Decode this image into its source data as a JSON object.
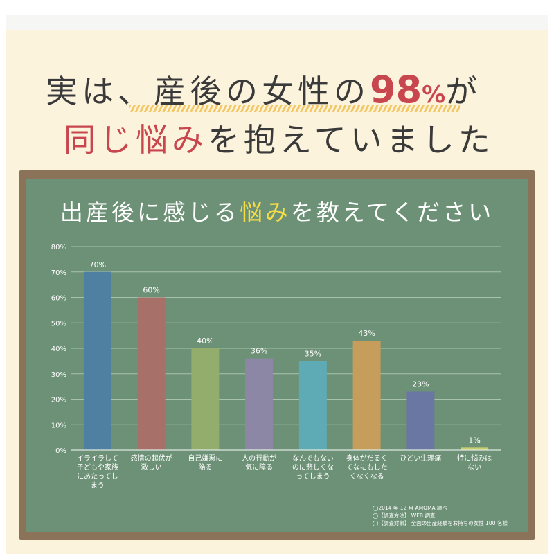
{
  "headline": {
    "line1_a": "実は、産後の女性の",
    "line1_num": "98",
    "line1_pct": "%",
    "line1_b": "が",
    "line2_red": "同じ悩み",
    "line2_rest": "を抱えていました"
  },
  "chart_title": {
    "before": "出産後に感じる",
    "highlight": "悩み",
    "after": "を教えてください"
  },
  "colors": {
    "board_frame": "#8a7358",
    "board_green": "#6c9176",
    "accent_red": "#c8474f",
    "accent_yellow": "#f6dd46"
  },
  "chart_data": {
    "type": "bar",
    "categories": [
      [
        "イライラして",
        "子どもや家族",
        "にあたってし",
        "まう"
      ],
      [
        "感情の起伏が",
        "激しい"
      ],
      [
        "自己嫌悪に",
        "陥る"
      ],
      [
        "人の行動が",
        "気に障る"
      ],
      [
        "なんでもない",
        "のに悲しくな",
        "ってしまう"
      ],
      [
        "身体がだるく",
        "てなにもした",
        "くなくなる"
      ],
      [
        "ひどい生理痛"
      ],
      [
        "特に悩みは",
        "ない"
      ]
    ],
    "values": [
      70,
      60,
      40,
      36,
      35,
      43,
      23,
      1
    ],
    "value_labels": [
      "70%",
      "60%",
      "40%",
      "36%",
      "35%",
      "43%",
      "23%",
      "1%"
    ],
    "bar_colors": [
      "#4f7fa1",
      "#a7716a",
      "#93ad6c",
      "#8d87a6",
      "#5eaab5",
      "#c79d5b",
      "#6b77a3",
      "#c6ce6a"
    ],
    "yticks": [
      "0%",
      "10%",
      "20%",
      "30%",
      "40%",
      "50%",
      "60%",
      "70%",
      "80%"
    ],
    "ylim": [
      0,
      80
    ],
    "grid": true
  },
  "notes": [
    "◯2014 年 12 月 AMOMA 調べ",
    "◯【調査方法】 WEB 調査",
    "◯【調査対象】 全国の出産経験をお持ちの女性 100 名様"
  ]
}
